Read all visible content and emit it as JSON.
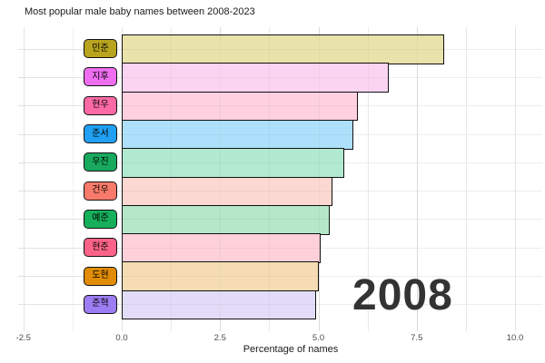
{
  "title": "Most popular male baby names between 2008-2023",
  "year_label": "2008",
  "axis": {
    "x_title": "Percentage of names",
    "x_ticks": [
      {
        "label": "-2.5",
        "value": -2.5
      },
      {
        "label": "0.0",
        "value": 0
      },
      {
        "label": "2.5",
        "value": 2.5
      },
      {
        "label": "5.0",
        "value": 5
      },
      {
        "label": "7.5",
        "value": 7.5
      },
      {
        "label": "10.0",
        "value": 10
      }
    ]
  },
  "chart_data": {
    "type": "bar",
    "orientation": "horizontal",
    "title": "Most popular male baby names between 2008-2023",
    "xlabel": "Percentage of names",
    "ylabel": "",
    "xlim": [
      -2.5,
      10.0
    ],
    "grid": true,
    "legend": false,
    "annotation": "2008",
    "categories": [
      "민준",
      "지후",
      "현우",
      "준서",
      "우진",
      "건우",
      "예준",
      "현준",
      "도현",
      "준혁"
    ],
    "values": [
      8.2,
      6.8,
      6.0,
      5.9,
      5.65,
      5.35,
      5.3,
      5.05,
      5.0,
      4.95
    ],
    "label_colors": [
      "#b8a41e",
      "#ee6ef0",
      "#fb6aa5",
      "#219ff2",
      "#18a95e",
      "#f87a6a",
      "#16b05c",
      "#fb6488",
      "#e08c06",
      "#9c7df2"
    ],
    "bar_colors": [
      "#e9e2ab",
      "#fbd4f2",
      "#fed0e0",
      "#aee0fb",
      "#b2e9d1",
      "#fcd8d2",
      "#b4e8c8",
      "#fdd0da",
      "#f5dcb4",
      "#e2dcf8"
    ],
    "minor_grid_values": [
      -1.25,
      1.25,
      3.75,
      6.25,
      8.75
    ]
  },
  "colors": {
    "background": "#ffffff",
    "bar_border": "#111111",
    "year_text": "#333333",
    "tick_text": "#4d4d4d",
    "grid_major": "#e3e3e3",
    "grid_minor": "#f1f1f1"
  }
}
